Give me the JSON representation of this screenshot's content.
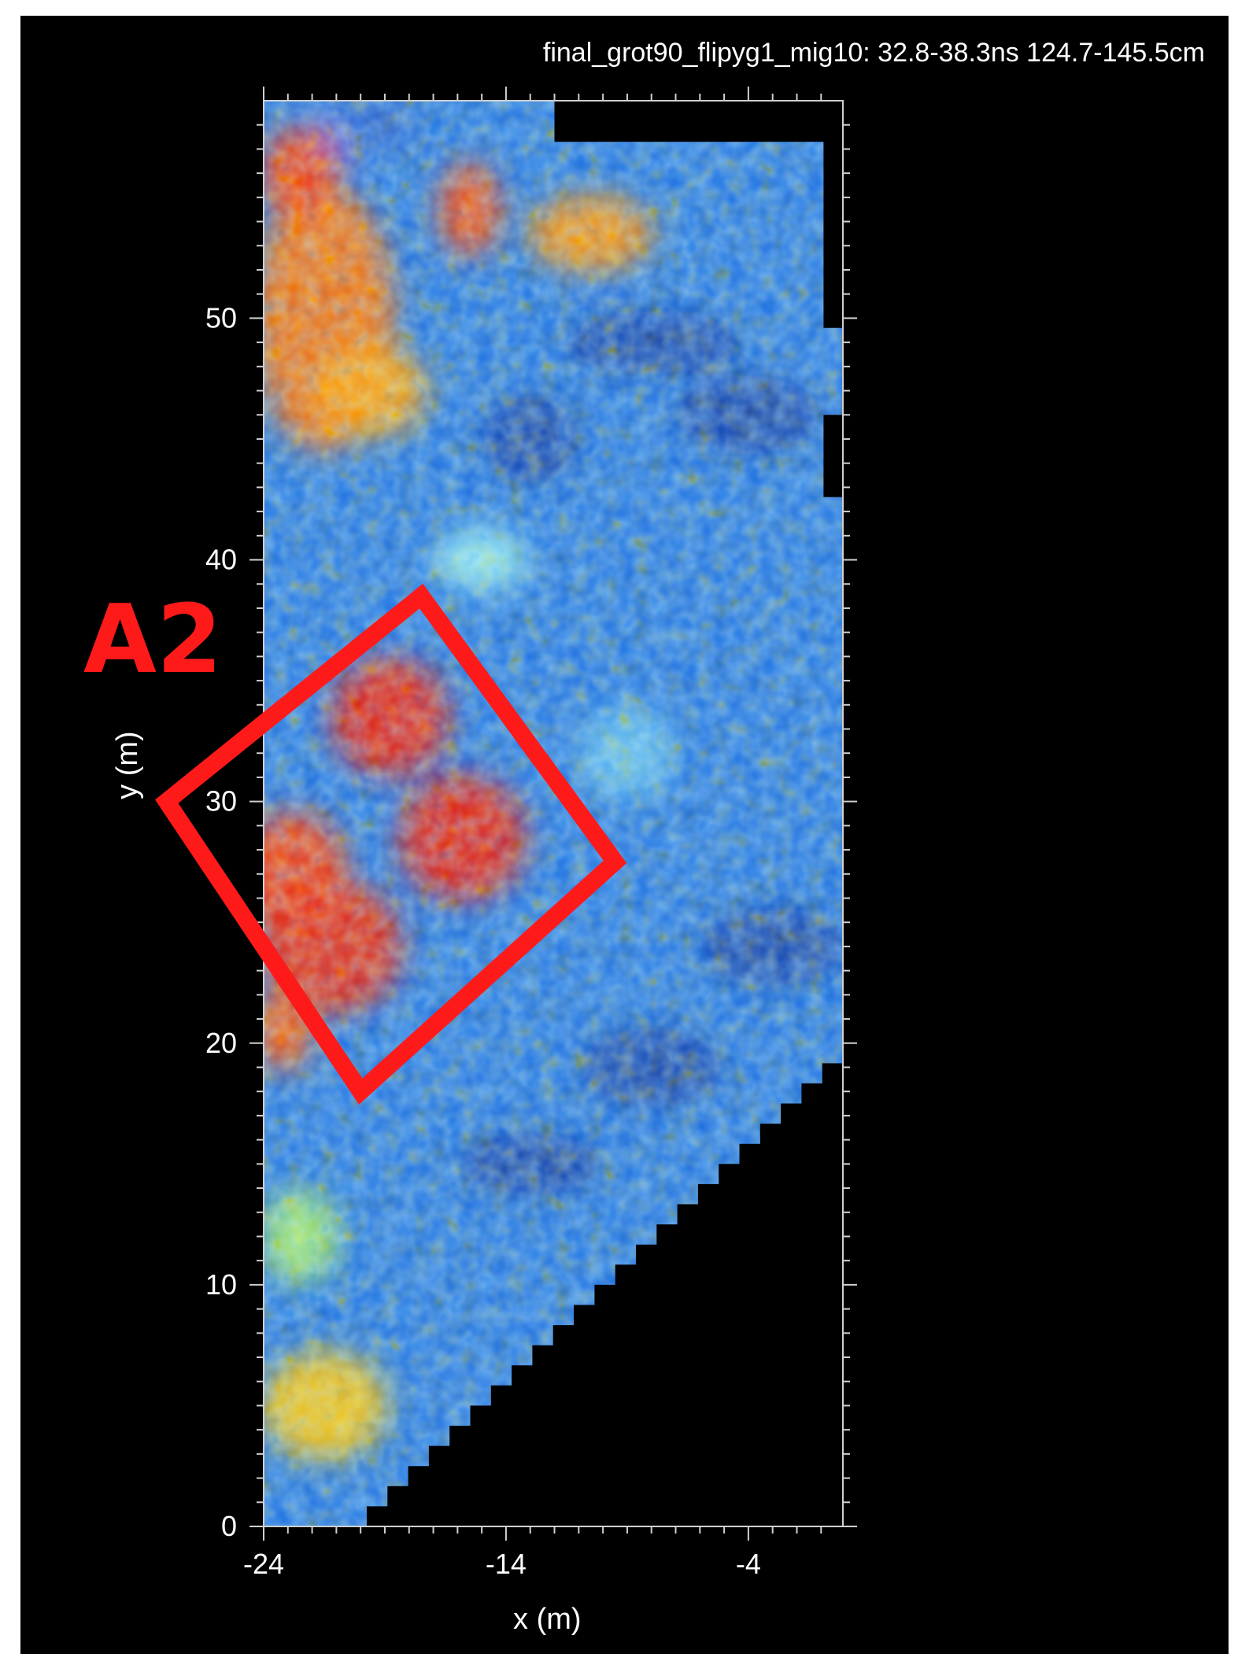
{
  "header": {
    "title": "final_grot90_flipyg1_mig10:  32.8-38.3ns  124.7-145.5cm"
  },
  "annotation": {
    "label": "A2",
    "color": "#ff1a1a"
  },
  "chart_data": {
    "type": "heatmap",
    "title": "final_grot90_flipyg1_mig10:  32.8-38.3ns  124.7-145.5cm",
    "xlabel": "x (m)",
    "ylabel": "y (m)",
    "xlim": [
      -24,
      -0.1
    ],
    "ylim": [
      0,
      59
    ],
    "x_ticks": [
      -24,
      -14,
      -4
    ],
    "y_ticks": [
      0,
      10,
      20,
      30,
      40,
      50
    ],
    "colormap": [
      "#0a2a9a",
      "#1565d8",
      "#3aa0ee",
      "#8fe6f0",
      "#b8f08a",
      "#ffe000",
      "#ff7000",
      "#e80000"
    ],
    "annotation_box": {
      "label": "A2",
      "corners_xy": [
        [
          -17.5,
          38.5
        ],
        [
          -9.5,
          27.5
        ],
        [
          -20,
          18
        ],
        [
          -28,
          30
        ]
      ]
    }
  }
}
